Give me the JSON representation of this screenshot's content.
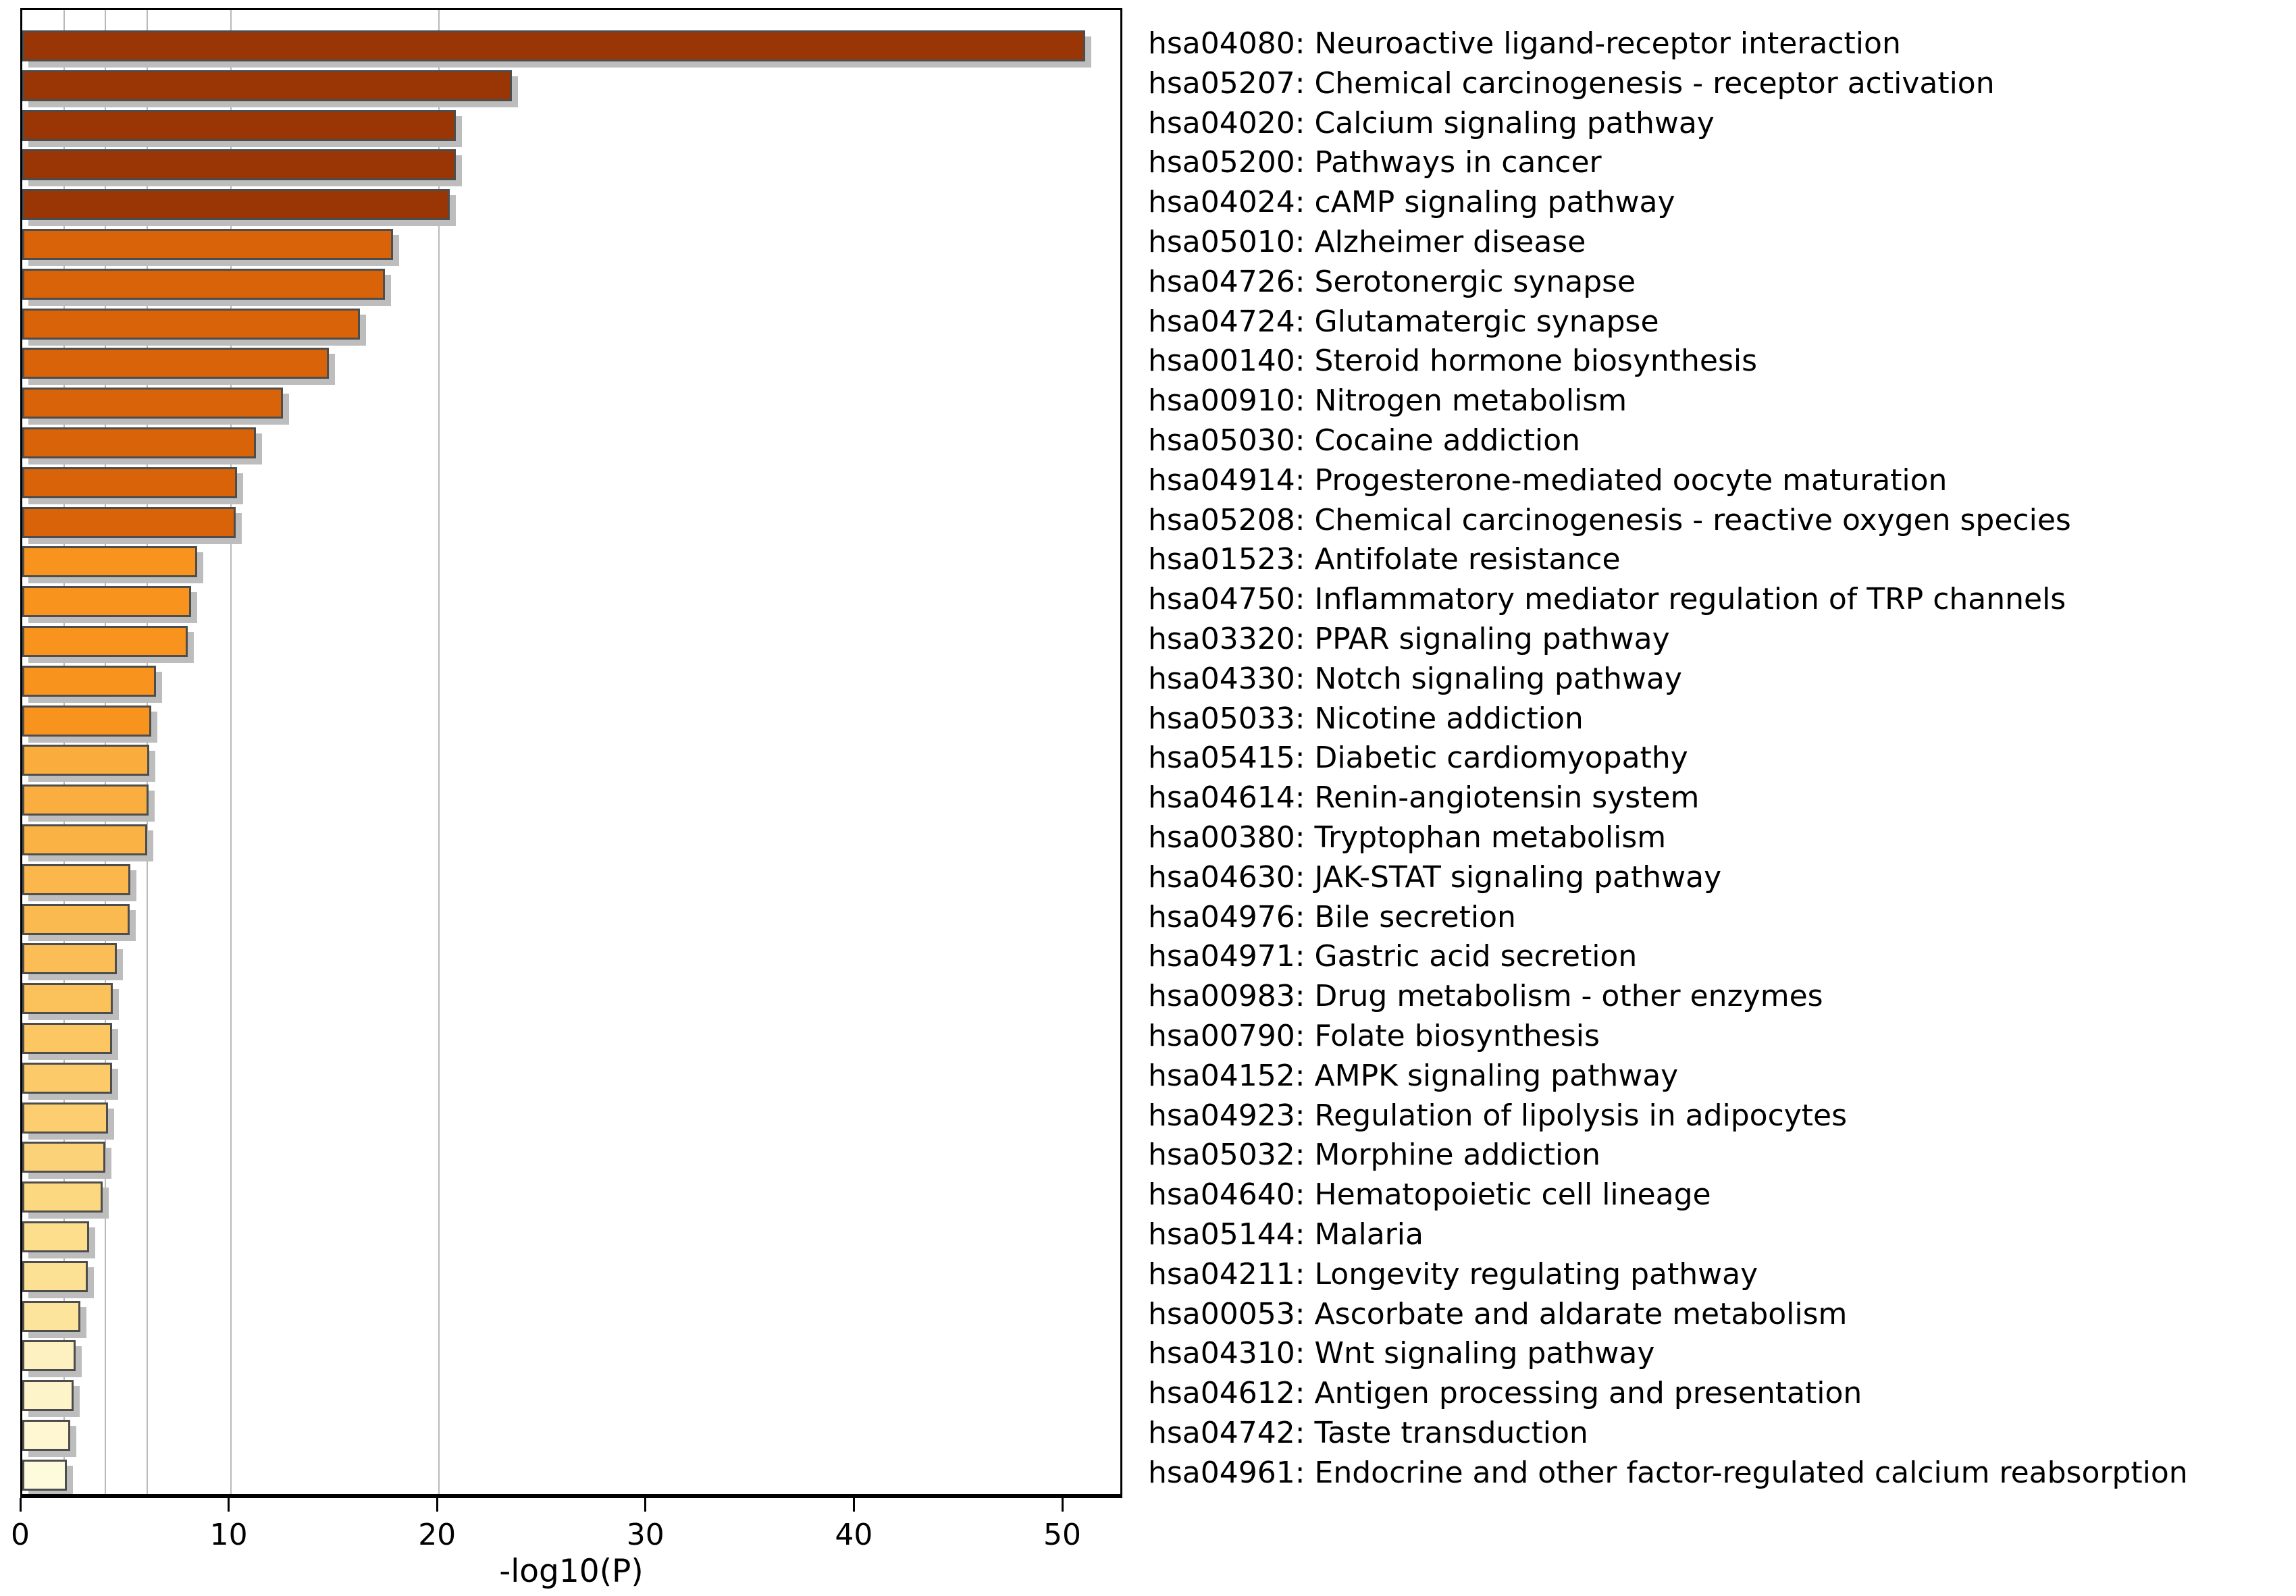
{
  "chart_data": {
    "type": "bar",
    "orientation": "horizontal",
    "title": "",
    "xlabel": "-log10(P)",
    "ylabel": "",
    "xlim": [
      0,
      52.9
    ],
    "x_ticks": [
      0,
      10,
      20,
      30,
      40,
      50
    ],
    "gridlines_at": [
      2,
      4,
      6,
      10,
      20
    ],
    "grid": "vertical-reference-lines",
    "legend_position": "none",
    "categories": [
      "hsa04080: Neuroactive ligand-receptor interaction",
      "hsa05207: Chemical carcinogenesis - receptor activation",
      "hsa04020: Calcium signaling pathway",
      "hsa05200: Pathways in cancer",
      "hsa04024: cAMP signaling pathway",
      "hsa05010: Alzheimer disease",
      "hsa04726: Serotonergic synapse",
      "hsa04724: Glutamatergic synapse",
      "hsa00140: Steroid hormone biosynthesis",
      "hsa00910: Nitrogen metabolism",
      "hsa05030: Cocaine addiction",
      "hsa04914: Progesterone-mediated oocyte maturation",
      "hsa05208: Chemical carcinogenesis - reactive oxygen species",
      "hsa01523: Antifolate resistance",
      "hsa04750: Inflammatory mediator regulation of TRP channels",
      "hsa03320: PPAR signaling pathway",
      "hsa04330: Notch signaling pathway",
      "hsa05033: Nicotine addiction",
      "hsa05415: Diabetic cardiomyopathy",
      "hsa04614: Renin-angiotensin system",
      "hsa00380: Tryptophan metabolism",
      "hsa04630: JAK-STAT signaling pathway",
      "hsa04976: Bile secretion",
      "hsa04971: Gastric acid secretion",
      "hsa00983: Drug metabolism - other enzymes",
      "hsa00790: Folate biosynthesis",
      "hsa04152: AMPK signaling pathway",
      "hsa04923: Regulation of lipolysis in adipocytes",
      "hsa05032: Morphine addiction",
      "hsa04640: Hematopoietic cell lineage",
      "hsa05144: Malaria",
      "hsa04211: Longevity regulating pathway",
      "hsa00053: Ascorbate and aldarate metabolism",
      "hsa04310: Wnt signaling pathway",
      "hsa04612: Antigen processing and presentation",
      "hsa04742: Taste transduction",
      "hsa04961: Endocrine and other factor-regulated calcium reabsorption"
    ],
    "values": [
      51.0,
      23.5,
      20.8,
      20.8,
      20.5,
      17.8,
      17.4,
      16.2,
      14.7,
      12.5,
      11.2,
      10.3,
      10.25,
      8.4,
      8.1,
      7.95,
      6.4,
      6.2,
      6.1,
      6.05,
      6.0,
      5.2,
      5.15,
      4.55,
      4.35,
      4.3,
      4.3,
      4.1,
      4.0,
      3.85,
      3.2,
      3.15,
      2.8,
      2.55,
      2.45,
      2.3,
      2.15
    ],
    "bar_colors": [
      "#9A3605",
      "#9A3605",
      "#9A3605",
      "#9A3605",
      "#9A3605",
      "#D96308",
      "#D96308",
      "#D96308",
      "#D96308",
      "#D96308",
      "#D96308",
      "#D96308",
      "#D96308",
      "#F8941D",
      "#F8941D",
      "#F8941D",
      "#F8941D",
      "#F8941D",
      "#FAAC3C",
      "#FAAE40",
      "#FBB244",
      "#FBB64C",
      "#FBBA50",
      "#FBBE56",
      "#FBC25C",
      "#FCC662",
      "#FCCA68",
      "#FCCE70",
      "#FCD278",
      "#FCD880",
      "#FCDE8C",
      "#FCE094",
      "#FCE49C",
      "#FDF1C2",
      "#FDF4CA",
      "#FEF7D2",
      "#FEFADC"
    ],
    "bar_border_color": "#4d4d4d",
    "shadow_color": "#bdbdbd",
    "gridline_color": "#b9b9b9",
    "axis_color": "#000000",
    "background_color": "#ffffff"
  }
}
